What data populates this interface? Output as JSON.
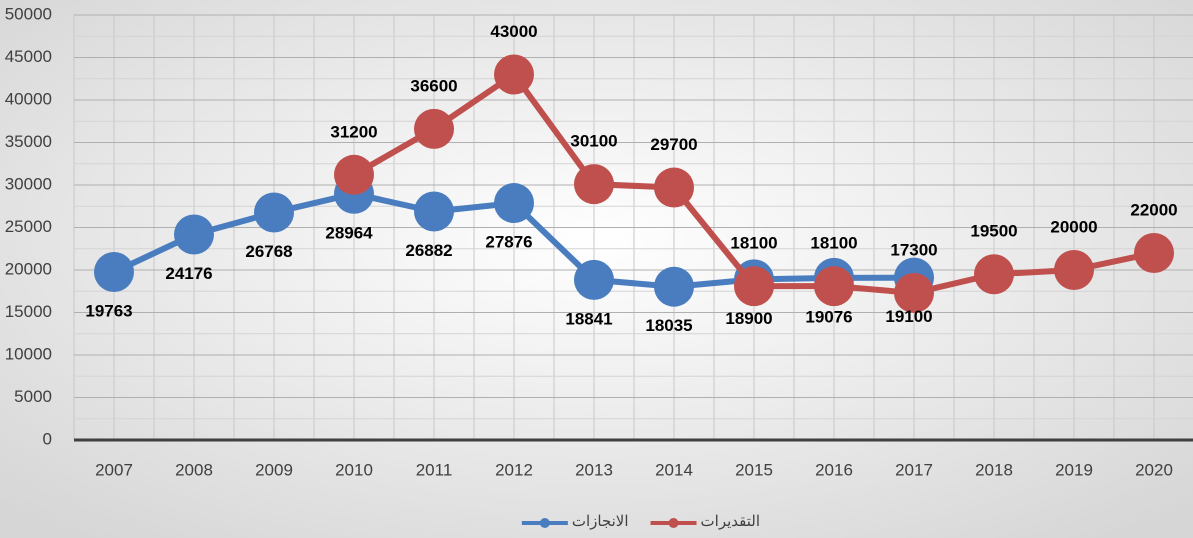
{
  "chart_data": {
    "type": "line",
    "categories": [
      "2007",
      "2008",
      "2009",
      "2010",
      "2011",
      "2012",
      "2013",
      "2014",
      "2015",
      "2016",
      "2017",
      "2018",
      "2019",
      "2020"
    ],
    "series": [
      {
        "name": "الانجازات",
        "color": "#4a7dbf",
        "values": [
          19763,
          24176,
          26768,
          28964,
          26882,
          27876,
          18841,
          18035,
          18900,
          19076,
          19100,
          null,
          null,
          null
        ]
      },
      {
        "name": "التقديرات",
        "color": "#c0504d",
        "values": [
          null,
          null,
          null,
          31200,
          36600,
          43000,
          30100,
          29700,
          18100,
          18100,
          17300,
          19500,
          20000,
          22000
        ]
      }
    ],
    "ylim": [
      0,
      50000
    ],
    "yticks": [
      0,
      5000,
      10000,
      15000,
      20000,
      25000,
      30000,
      35000,
      40000,
      45000,
      50000
    ],
    "grid": true,
    "legend": "bottom"
  }
}
